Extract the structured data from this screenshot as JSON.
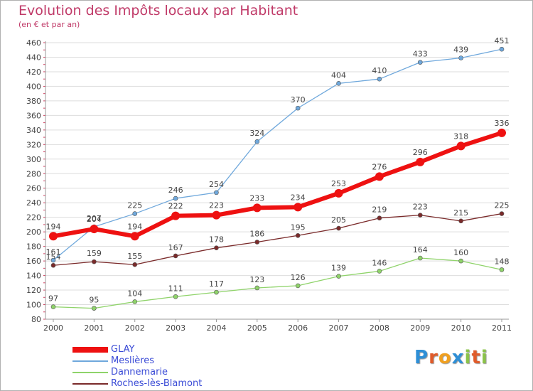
{
  "title": "Evolution des Impôts locaux par Habitant",
  "subtitle": "(en € et par an)",
  "logo": {
    "letters": [
      "P",
      "r",
      "o",
      "x",
      "i",
      "t",
      "i"
    ],
    "colors": [
      "#2e8fd6",
      "#e05b2a",
      "#f0a020",
      "#2e8fd6",
      "#8bc34a",
      "#e05b2a",
      "#8bc34a"
    ]
  },
  "chart_data": {
    "type": "line",
    "x": [
      "2000",
      "2001",
      "2002",
      "2003",
      "2004",
      "2005",
      "2006",
      "2007",
      "2008",
      "2009",
      "2010",
      "2011"
    ],
    "ylim": [
      80,
      460
    ],
    "yticks": [
      80,
      100,
      120,
      140,
      160,
      180,
      200,
      220,
      240,
      260,
      280,
      300,
      320,
      340,
      360,
      380,
      400,
      420,
      440,
      460
    ],
    "grid": "horizontal",
    "legend_position": "bottom-left",
    "series": [
      {
        "name": "Roches-lès-Blamont",
        "color": "#7a2a2a",
        "width": 1.3,
        "values": [
          154,
          159,
          155,
          167,
          178,
          186,
          195,
          205,
          219,
          223,
          215,
          225
        ]
      },
      {
        "name": "Dannemarie",
        "color": "#8fd36a",
        "width": 1.3,
        "values": [
          97,
          95,
          104,
          111,
          117,
          123,
          126,
          139,
          146,
          164,
          160,
          148
        ]
      },
      {
        "name": "Meslières",
        "color": "#6fa8dc",
        "width": 1.3,
        "values": [
          161,
          207,
          225,
          246,
          254,
          324,
          370,
          404,
          410,
          433,
          439,
          451
        ]
      },
      {
        "name": "GLAY",
        "color": "#ee1111",
        "width": 6,
        "values": [
          194,
          204,
          194,
          222,
          223,
          233,
          234,
          253,
          276,
          296,
          318,
          336
        ]
      }
    ],
    "legend_order": [
      "GLAY",
      "Meslières",
      "Dannemarie",
      "Roches-lès-Blamont"
    ]
  }
}
